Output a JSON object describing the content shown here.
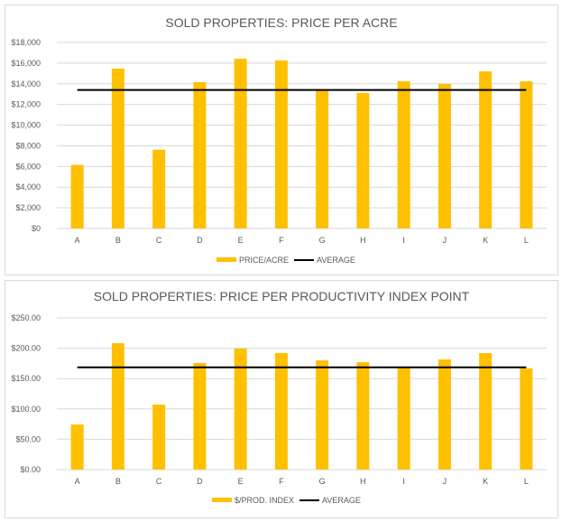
{
  "chart_data": [
    {
      "type": "bar",
      "title": "SOLD PROPERTIES: PRICE PER ACRE",
      "categories": [
        "A",
        "B",
        "C",
        "D",
        "E",
        "F",
        "G",
        "H",
        "I",
        "J",
        "K",
        "L"
      ],
      "series": [
        {
          "name": "PRICE/ACRE",
          "type": "bar",
          "values": [
            6150,
            15470,
            7620,
            14160,
            16420,
            16250,
            13370,
            13110,
            14240,
            13980,
            15200,
            14240
          ]
        },
        {
          "name": "AVERAGE",
          "type": "line",
          "values": [
            13400,
            13400,
            13400,
            13400,
            13400,
            13400,
            13400,
            13400,
            13400,
            13400,
            13400,
            13400
          ]
        }
      ],
      "ylim": [
        0,
        18000
      ],
      "yticks": [
        "$0",
        "$2,000",
        "$4,000",
        "$6,000",
        "$8,000",
        "$10,000",
        "$12,000",
        "$14,000",
        "$16,000",
        "$18,000"
      ],
      "grid": true,
      "legend": "bottom"
    },
    {
      "type": "bar",
      "title": "SOLD PROPERTIES: PRICE PER PRODUCTIVITY INDEX  POINT",
      "categories": [
        "A",
        "B",
        "C",
        "D",
        "E",
        "F",
        "G",
        "H",
        "I",
        "J",
        "K",
        "L"
      ],
      "series": [
        {
          "name": "$/PROD. INDEX",
          "type": "bar",
          "values": [
            74.4,
            208.3,
            107,
            175.6,
            199.4,
            192,
            180,
            177,
            167,
            181.5,
            192,
            166.7
          ]
        },
        {
          "name": "AVERAGE",
          "type": "line",
          "values": [
            168.6,
            168.6,
            168.6,
            168.6,
            168.6,
            168.6,
            168.6,
            168.6,
            168.6,
            168.6,
            168.6,
            168.6
          ]
        }
      ],
      "ylim": [
        0,
        250
      ],
      "yticks": [
        "$0.00",
        "$50.00",
        "$100.00",
        "$150.00",
        "$200.00",
        "$250.00"
      ],
      "grid": true,
      "legend": "bottom"
    }
  ],
  "colors": {
    "bar": "#ffc000",
    "line": "#000000",
    "grid": "#d9d9d9",
    "text": "#595959"
  }
}
